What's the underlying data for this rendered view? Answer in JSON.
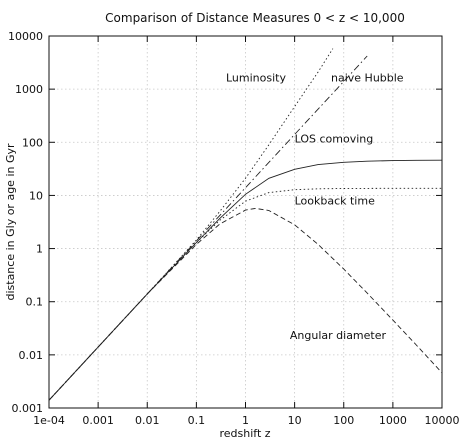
{
  "chart_data": {
    "type": "line",
    "title": "Comparison of Distance Measures 0 < z < 10,000",
    "xlabel": "redshift z",
    "ylabel": "distance in Gly or age in Gyr",
    "xscale": "log",
    "yscale": "log",
    "xlim": [
      0.0001,
      10000
    ],
    "ylim": [
      0.001,
      10000
    ],
    "grid": true,
    "x_ticks": [
      "1e-04",
      "0.001",
      "0.01",
      "0.1",
      "1",
      "10",
      "100",
      "1000",
      "10000"
    ],
    "y_ticks": [
      "0.001",
      "0.01",
      "0.1",
      "1",
      "10",
      "100",
      "1000",
      "10000"
    ],
    "series": [
      {
        "name": "Luminosity",
        "style": "dotted",
        "x": [
          0.0001,
          0.001,
          0.01,
          0.1,
          0.3,
          1,
          3,
          10,
          30,
          60
        ],
        "y": [
          0.0014,
          0.014,
          0.14,
          1.45,
          5.0,
          21,
          90,
          470,
          2100,
          5800
        ]
      },
      {
        "name": "naive Hubble",
        "style": "dash-dot",
        "x": [
          0.0001,
          0.001,
          0.01,
          0.1,
          1,
          10,
          100,
          300
        ],
        "y": [
          0.0014,
          0.014,
          0.14,
          1.4,
          14,
          140,
          1400,
          4200
        ]
      },
      {
        "name": "LOS comoving",
        "style": "solid",
        "x": [
          0.0001,
          0.001,
          0.01,
          0.1,
          0.3,
          1,
          3,
          10,
          30,
          100,
          300,
          1000,
          3000,
          10000
        ],
        "y": [
          0.0014,
          0.014,
          0.14,
          1.3,
          3.7,
          10.5,
          21,
          31,
          38,
          42,
          44,
          45.3,
          45.8,
          46
        ]
      },
      {
        "name": "Lookback time",
        "style": "dotted",
        "x": [
          0.0001,
          0.001,
          0.01,
          0.1,
          0.3,
          1,
          3,
          10,
          30,
          100,
          1000,
          10000
        ],
        "y": [
          0.0014,
          0.014,
          0.14,
          1.3,
          3.4,
          7.8,
          11.3,
          12.8,
          13.3,
          13.5,
          13.6,
          13.6
        ]
      },
      {
        "name": "Angular diameter",
        "style": "dashed",
        "x": [
          0.0001,
          0.001,
          0.01,
          0.1,
          0.3,
          1,
          1.6,
          3,
          10,
          30,
          100,
          300,
          1000,
          3000,
          10000
        ],
        "y": [
          0.0014,
          0.014,
          0.14,
          1.2,
          2.9,
          5.3,
          5.7,
          5.2,
          2.8,
          1.2,
          0.41,
          0.145,
          0.045,
          0.0153,
          0.0046
        ]
      }
    ],
    "annotations": [
      {
        "text": "Luminosity",
        "x": 0.4,
        "y": 1400
      },
      {
        "text": "naive Hubble",
        "x": 55,
        "y": 1400
      },
      {
        "text": "LOS comoving",
        "x": 10,
        "y": 100
      },
      {
        "text": "Lookback time",
        "x": 10,
        "y": 6.8
      },
      {
        "text": "Angular diameter",
        "x": 8,
        "y": 0.02
      }
    ]
  }
}
